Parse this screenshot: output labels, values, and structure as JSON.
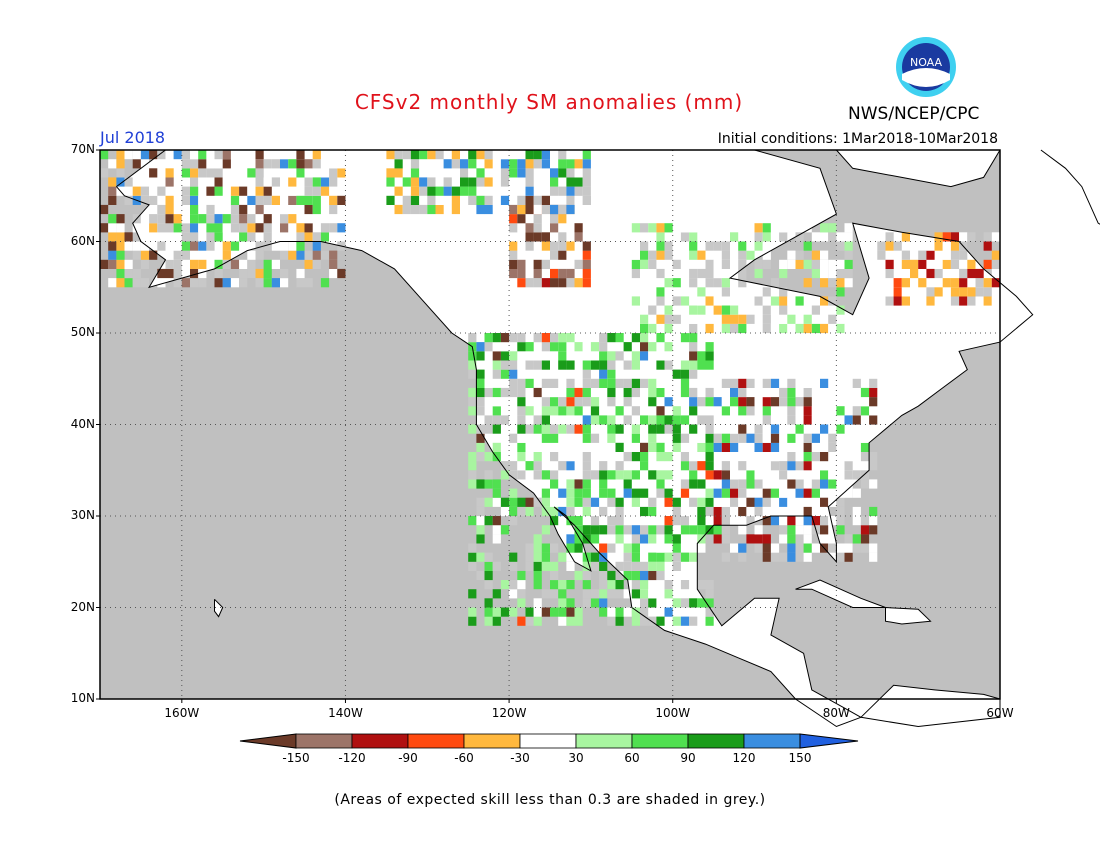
{
  "title": "CFSv2 monthly SM anomalies (mm)",
  "agency": "NWS/NCEP/CPC",
  "logo_text": "NOAA",
  "valid_month": "Jul 2018",
  "initial_conditions": "Initial conditions: 1Mar2018-10Mar2018",
  "lat_labels": [
    "70N",
    "60N",
    "50N",
    "40N",
    "30N",
    "20N",
    "10N"
  ],
  "lon_labels": [
    "160W",
    "140W",
    "120W",
    "100W",
    "80W",
    "60W"
  ],
  "colorbar": {
    "ticks": [
      "-150",
      "-120",
      "-90",
      "-60",
      "-30",
      "30",
      "60",
      "90",
      "120",
      "150"
    ],
    "colors": [
      "#6b3a28",
      "#9c7468",
      "#b01010",
      "#ff4a10",
      "#ffb83e",
      "#ffffff",
      "#a8f5a0",
      "#50e050",
      "#1a9c1a",
      "#3a8ee0",
      "#2060e0"
    ]
  },
  "footnote": "(Areas of expected skill less than 0.3 are shaded in grey.)",
  "colors": {
    "grey": "#c8c8c8",
    "ocean": "#c0c0c0",
    "title_red": "#e0121b",
    "month_blue": "#1f3fd6"
  }
}
